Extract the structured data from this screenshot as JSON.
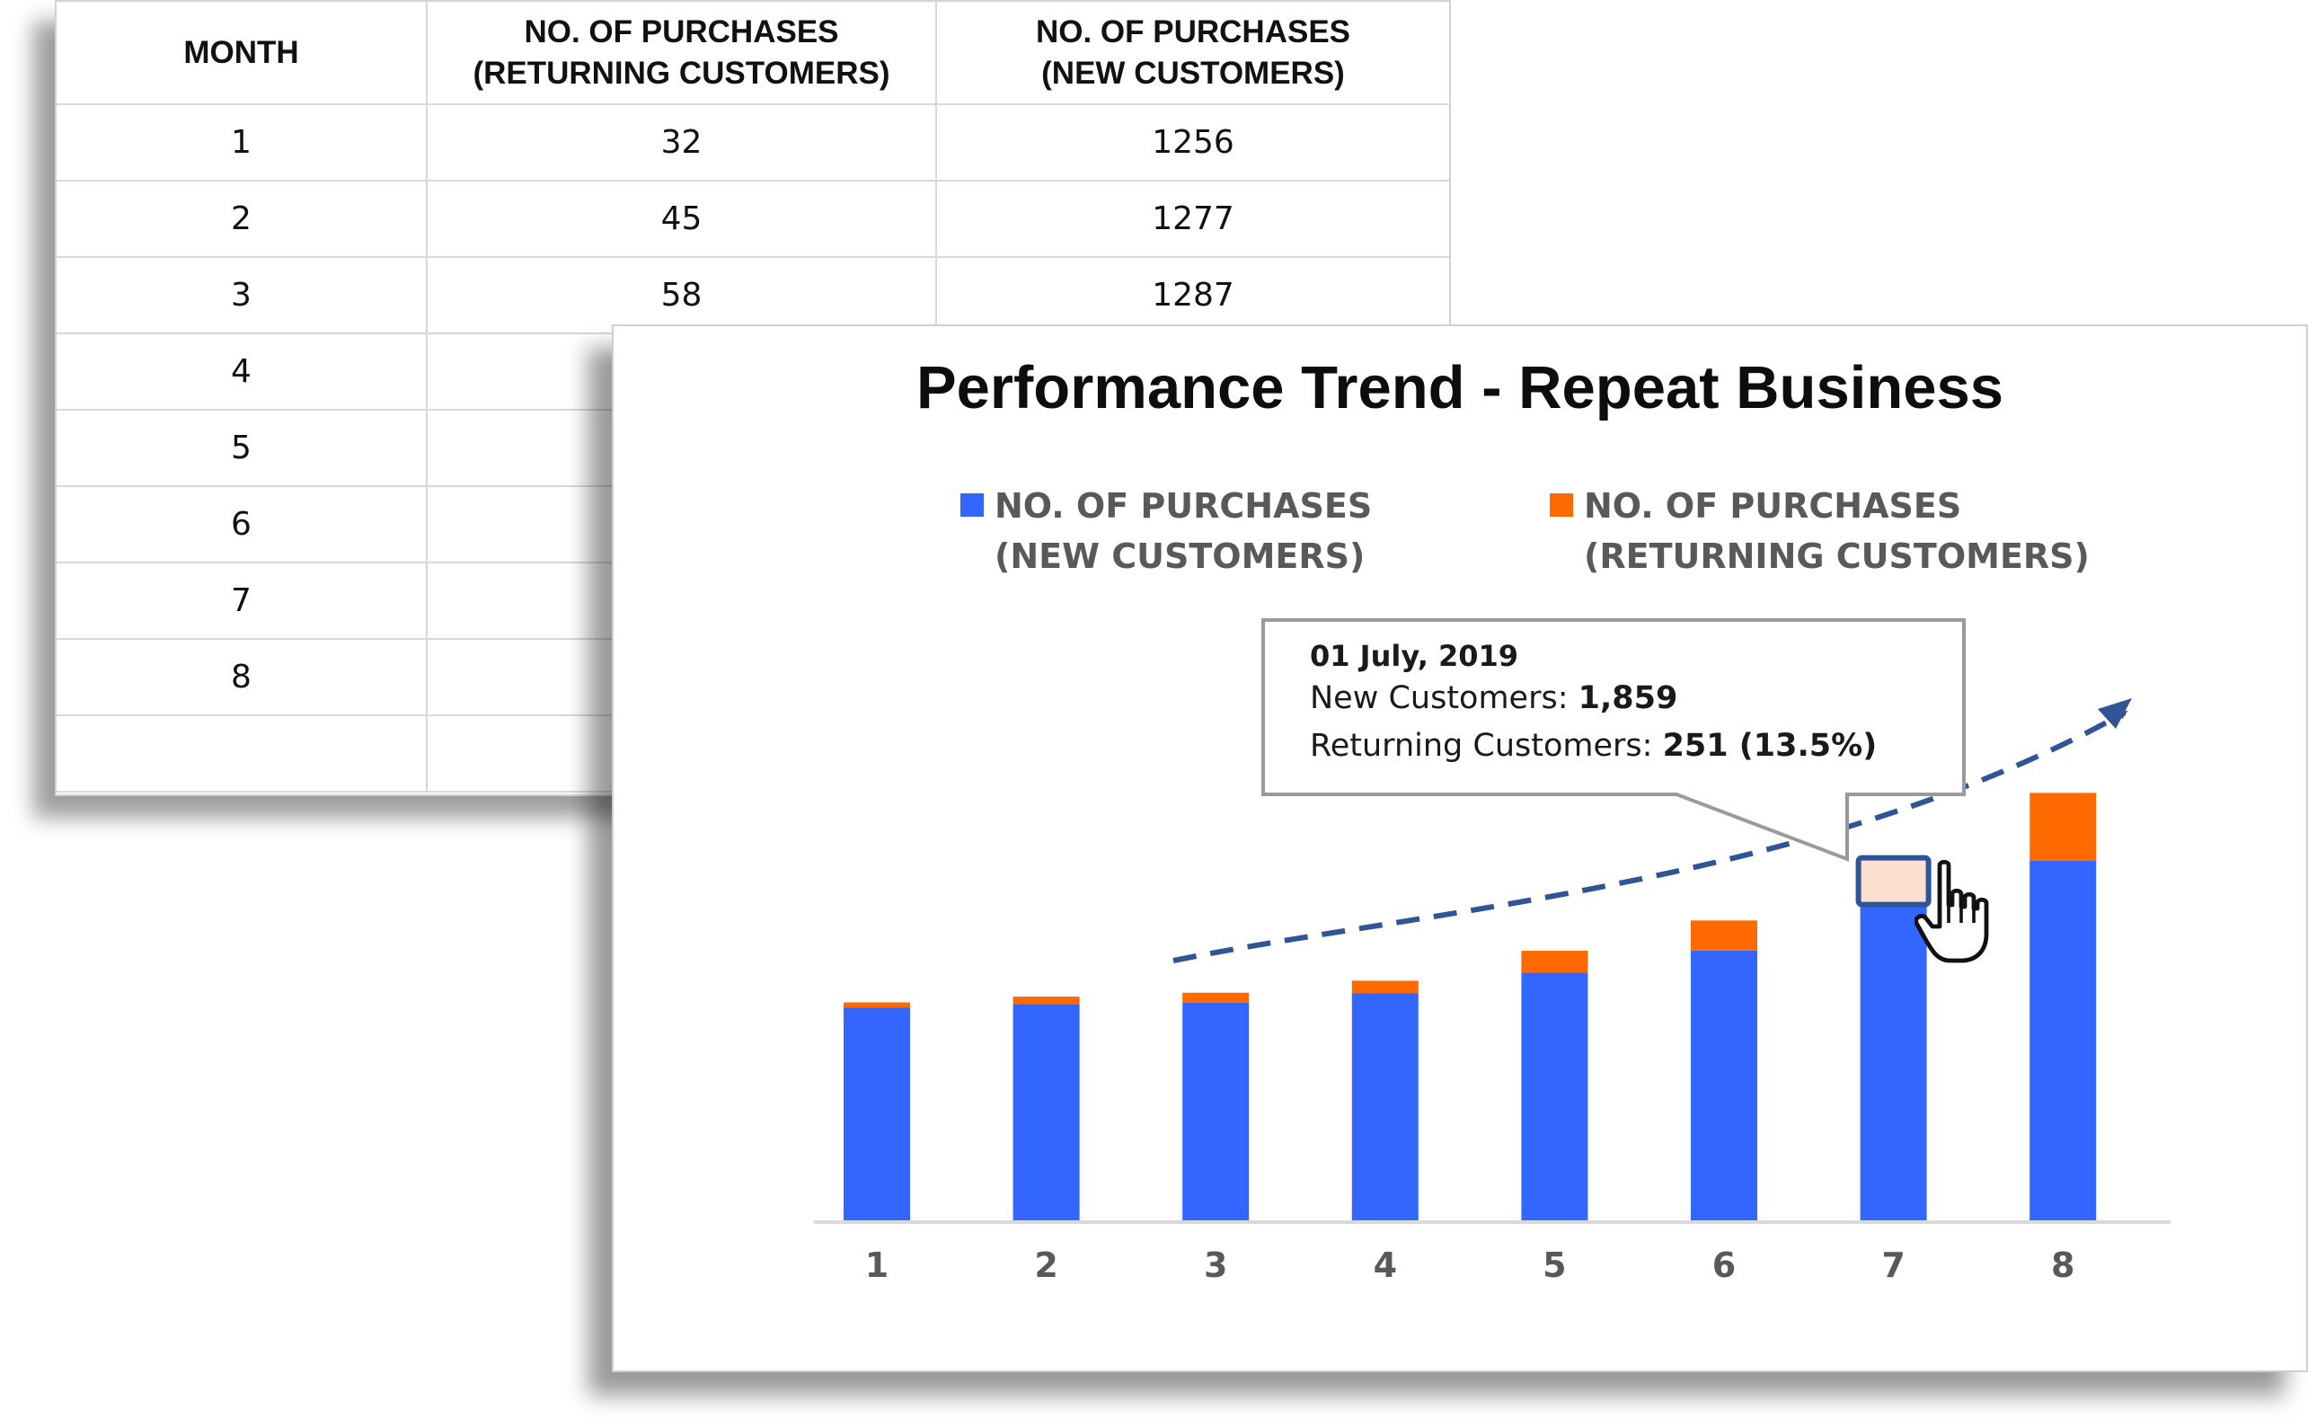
{
  "table": {
    "headers": [
      {
        "lines": [
          "MONTH"
        ]
      },
      {
        "lines": [
          "NO. OF PURCHASES",
          "(RETURNING CUSTOMERS)"
        ]
      },
      {
        "lines": [
          "NO. OF PURCHASES",
          "(NEW CUSTOMERS)"
        ]
      }
    ],
    "rows": [
      [
        "1",
        "32",
        "1256"
      ],
      [
        "2",
        "45",
        "1277"
      ],
      [
        "3",
        "58",
        "1287"
      ],
      [
        "4",
        "",
        ""
      ],
      [
        "5",
        "",
        ""
      ],
      [
        "6",
        "",
        ""
      ],
      [
        "7",
        "",
        ""
      ],
      [
        "8",
        "",
        ""
      ],
      [
        "",
        "",
        ""
      ]
    ]
  },
  "chart": {
    "title": "Performance Trend - Repeat Business",
    "legend": [
      {
        "lines": [
          "NO. OF PURCHASES",
          "(NEW CUSTOMERS)"
        ],
        "color": "#3366ff"
      },
      {
        "lines": [
          "NO. OF PURCHASES",
          "(RETURNING CUSTOMERS)"
        ],
        "color": "#ff6a00"
      }
    ],
    "tooltip": {
      "date": "01 July, 2019",
      "new_label": "New Customers: ",
      "new_value": "1,859",
      "returning_label": "Returning Customers: ",
      "returning_value": "251 (13.5%)"
    }
  },
  "chart_data": {
    "type": "bar",
    "stacked": true,
    "title": "Performance Trend - Repeat Business",
    "categories": [
      "1",
      "2",
      "3",
      "4",
      "5",
      "6",
      "7",
      "8"
    ],
    "series": [
      {
        "name": "NO. OF PURCHASES (NEW CUSTOMERS)",
        "color": "#3366ff",
        "values": [
          1256,
          1277,
          1287,
          1341,
          1463,
          1594,
          1859,
          2126
        ]
      },
      {
        "name": "NO. OF PURCHASES (RETURNING CUSTOMERS)",
        "color": "#ff6a00",
        "values": [
          32,
          45,
          58,
          75,
          130,
          178,
          251,
          400
        ]
      }
    ],
    "highlight_category": "7",
    "trend_arrow": true,
    "ylim": [
      0,
      2600
    ],
    "grid": false,
    "legend_position": "top"
  }
}
